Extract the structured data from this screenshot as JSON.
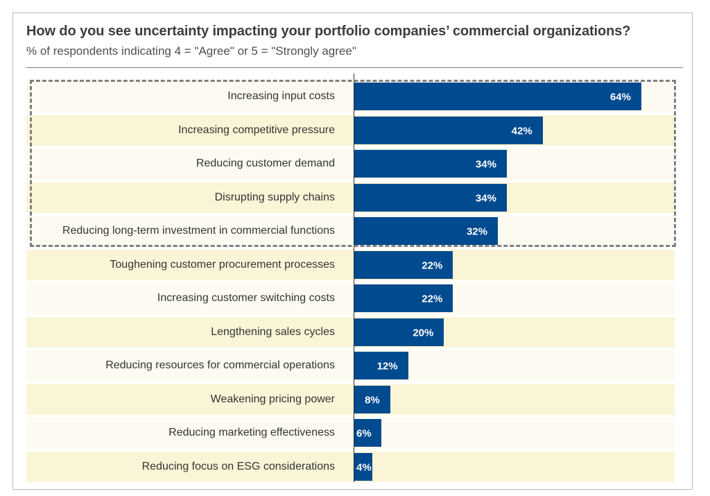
{
  "chart_data": {
    "type": "bar",
    "orientation": "horizontal",
    "title": "How do you see uncertainty impacting your portfolio companies’ commercial organizations?",
    "subtitle": "% of respondents indicating 4 = \"Agree\" or 5 = \"Strongly agree\"",
    "categories": [
      "Increasing input costs",
      "Increasing competitive pressure",
      "Reducing customer demand",
      "Disrupting supply chains",
      "Reducing long-term investment in commercial functions",
      "Toughening customer procurement processes",
      "Increasing customer switching costs",
      "Lengthening sales cycles",
      "Reducing resources for commercial operations",
      "Weakening pricing power",
      "Reducing marketing effectiveness",
      "Reducing focus on ESG considerations"
    ],
    "values": [
      64,
      42,
      34,
      34,
      32,
      22,
      22,
      20,
      12,
      8,
      6,
      4
    ],
    "value_labels": [
      "64%",
      "42%",
      "34%",
      "34%",
      "32%",
      "22%",
      "22%",
      "20%",
      "12%",
      "8%",
      "6%",
      "4%"
    ],
    "highlighted_categories": [
      "Increasing input costs",
      "Increasing competitive pressure",
      "Reducing customer demand",
      "Disrupting supply chains",
      "Reducing long-term investment in commercial functions"
    ],
    "highlight_style": "dashed box",
    "xlim": [
      0,
      70
    ],
    "grid": false,
    "legend": "none",
    "colors": {
      "bar": "#004a8f",
      "band_light": "#fdfbf1",
      "band_dark": "#faf5d7",
      "value_label": "#ffffff"
    }
  }
}
